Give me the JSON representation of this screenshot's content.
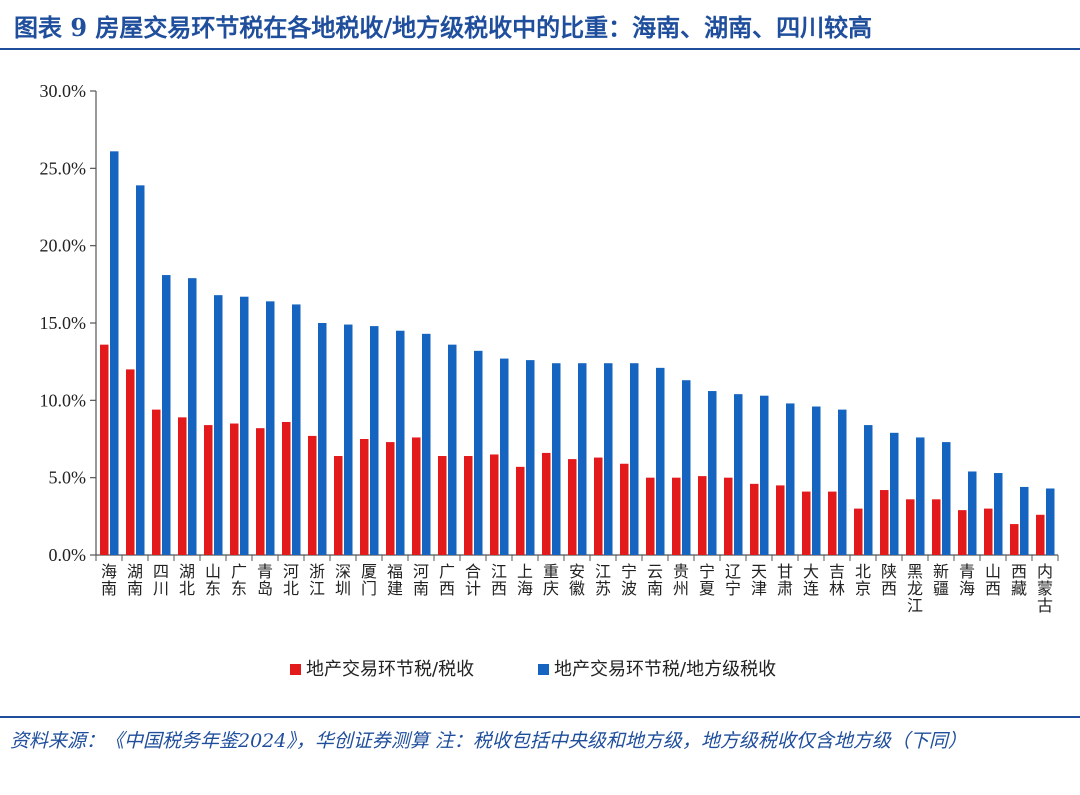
{
  "title": "图表 9   房屋交易环节税在各地税收/地方级税收中的比重：海南、湖南、四川较高",
  "source": "资料来源：《中国税务年鉴2024》，华创证券测算  注：税收包括中央级和地方级，地方级税收仅含地方级（下同）",
  "colors": {
    "series1": "#e31a1c",
    "series2": "#1565c0",
    "title": "#1f4e9c"
  },
  "chart_data": {
    "type": "bar",
    "categories": [
      "海南",
      "湖南",
      "四川",
      "湖北",
      "山东",
      "广东",
      "青岛",
      "河北",
      "浙江",
      "深圳",
      "厦门",
      "福建",
      "河南",
      "广西",
      "合计",
      "江西",
      "上海",
      "重庆",
      "安徽",
      "江苏",
      "宁波",
      "云南",
      "贵州",
      "宁夏",
      "辽宁",
      "天津",
      "甘肃",
      "大连",
      "吉林",
      "北京",
      "陕西",
      "黑龙江",
      "新疆",
      "青海",
      "山西",
      "西藏",
      "内蒙古"
    ],
    "series": [
      {
        "name": "地产交易环节税/税收",
        "values": [
          13.6,
          12.0,
          9.4,
          8.9,
          8.4,
          8.5,
          8.2,
          8.6,
          7.7,
          6.4,
          7.5,
          7.3,
          7.6,
          6.4,
          6.4,
          6.5,
          5.7,
          6.6,
          6.2,
          6.3,
          5.9,
          5.0,
          5.0,
          5.1,
          5.0,
          4.6,
          4.5,
          4.1,
          4.1,
          3.0,
          4.2,
          3.6,
          3.6,
          2.9,
          3.0,
          2.0,
          2.6
        ]
      },
      {
        "name": "地产交易环节税/地方级税收",
        "values": [
          26.1,
          23.9,
          18.1,
          17.9,
          16.8,
          16.7,
          16.4,
          16.2,
          15.0,
          14.9,
          14.8,
          14.5,
          14.3,
          13.6,
          13.2,
          12.7,
          12.6,
          12.4,
          12.4,
          12.4,
          12.4,
          12.1,
          11.3,
          10.6,
          10.4,
          10.3,
          9.8,
          9.6,
          9.4,
          8.4,
          7.9,
          7.6,
          7.3,
          5.4,
          5.3,
          4.4,
          4.3
        ]
      }
    ],
    "yticks": [
      "0.0%",
      "5.0%",
      "10.0%",
      "15.0%",
      "20.0%",
      "25.0%",
      "30.0%"
    ],
    "ylim": [
      0,
      30
    ],
    "legend_position": "bottom",
    "grid": false
  }
}
